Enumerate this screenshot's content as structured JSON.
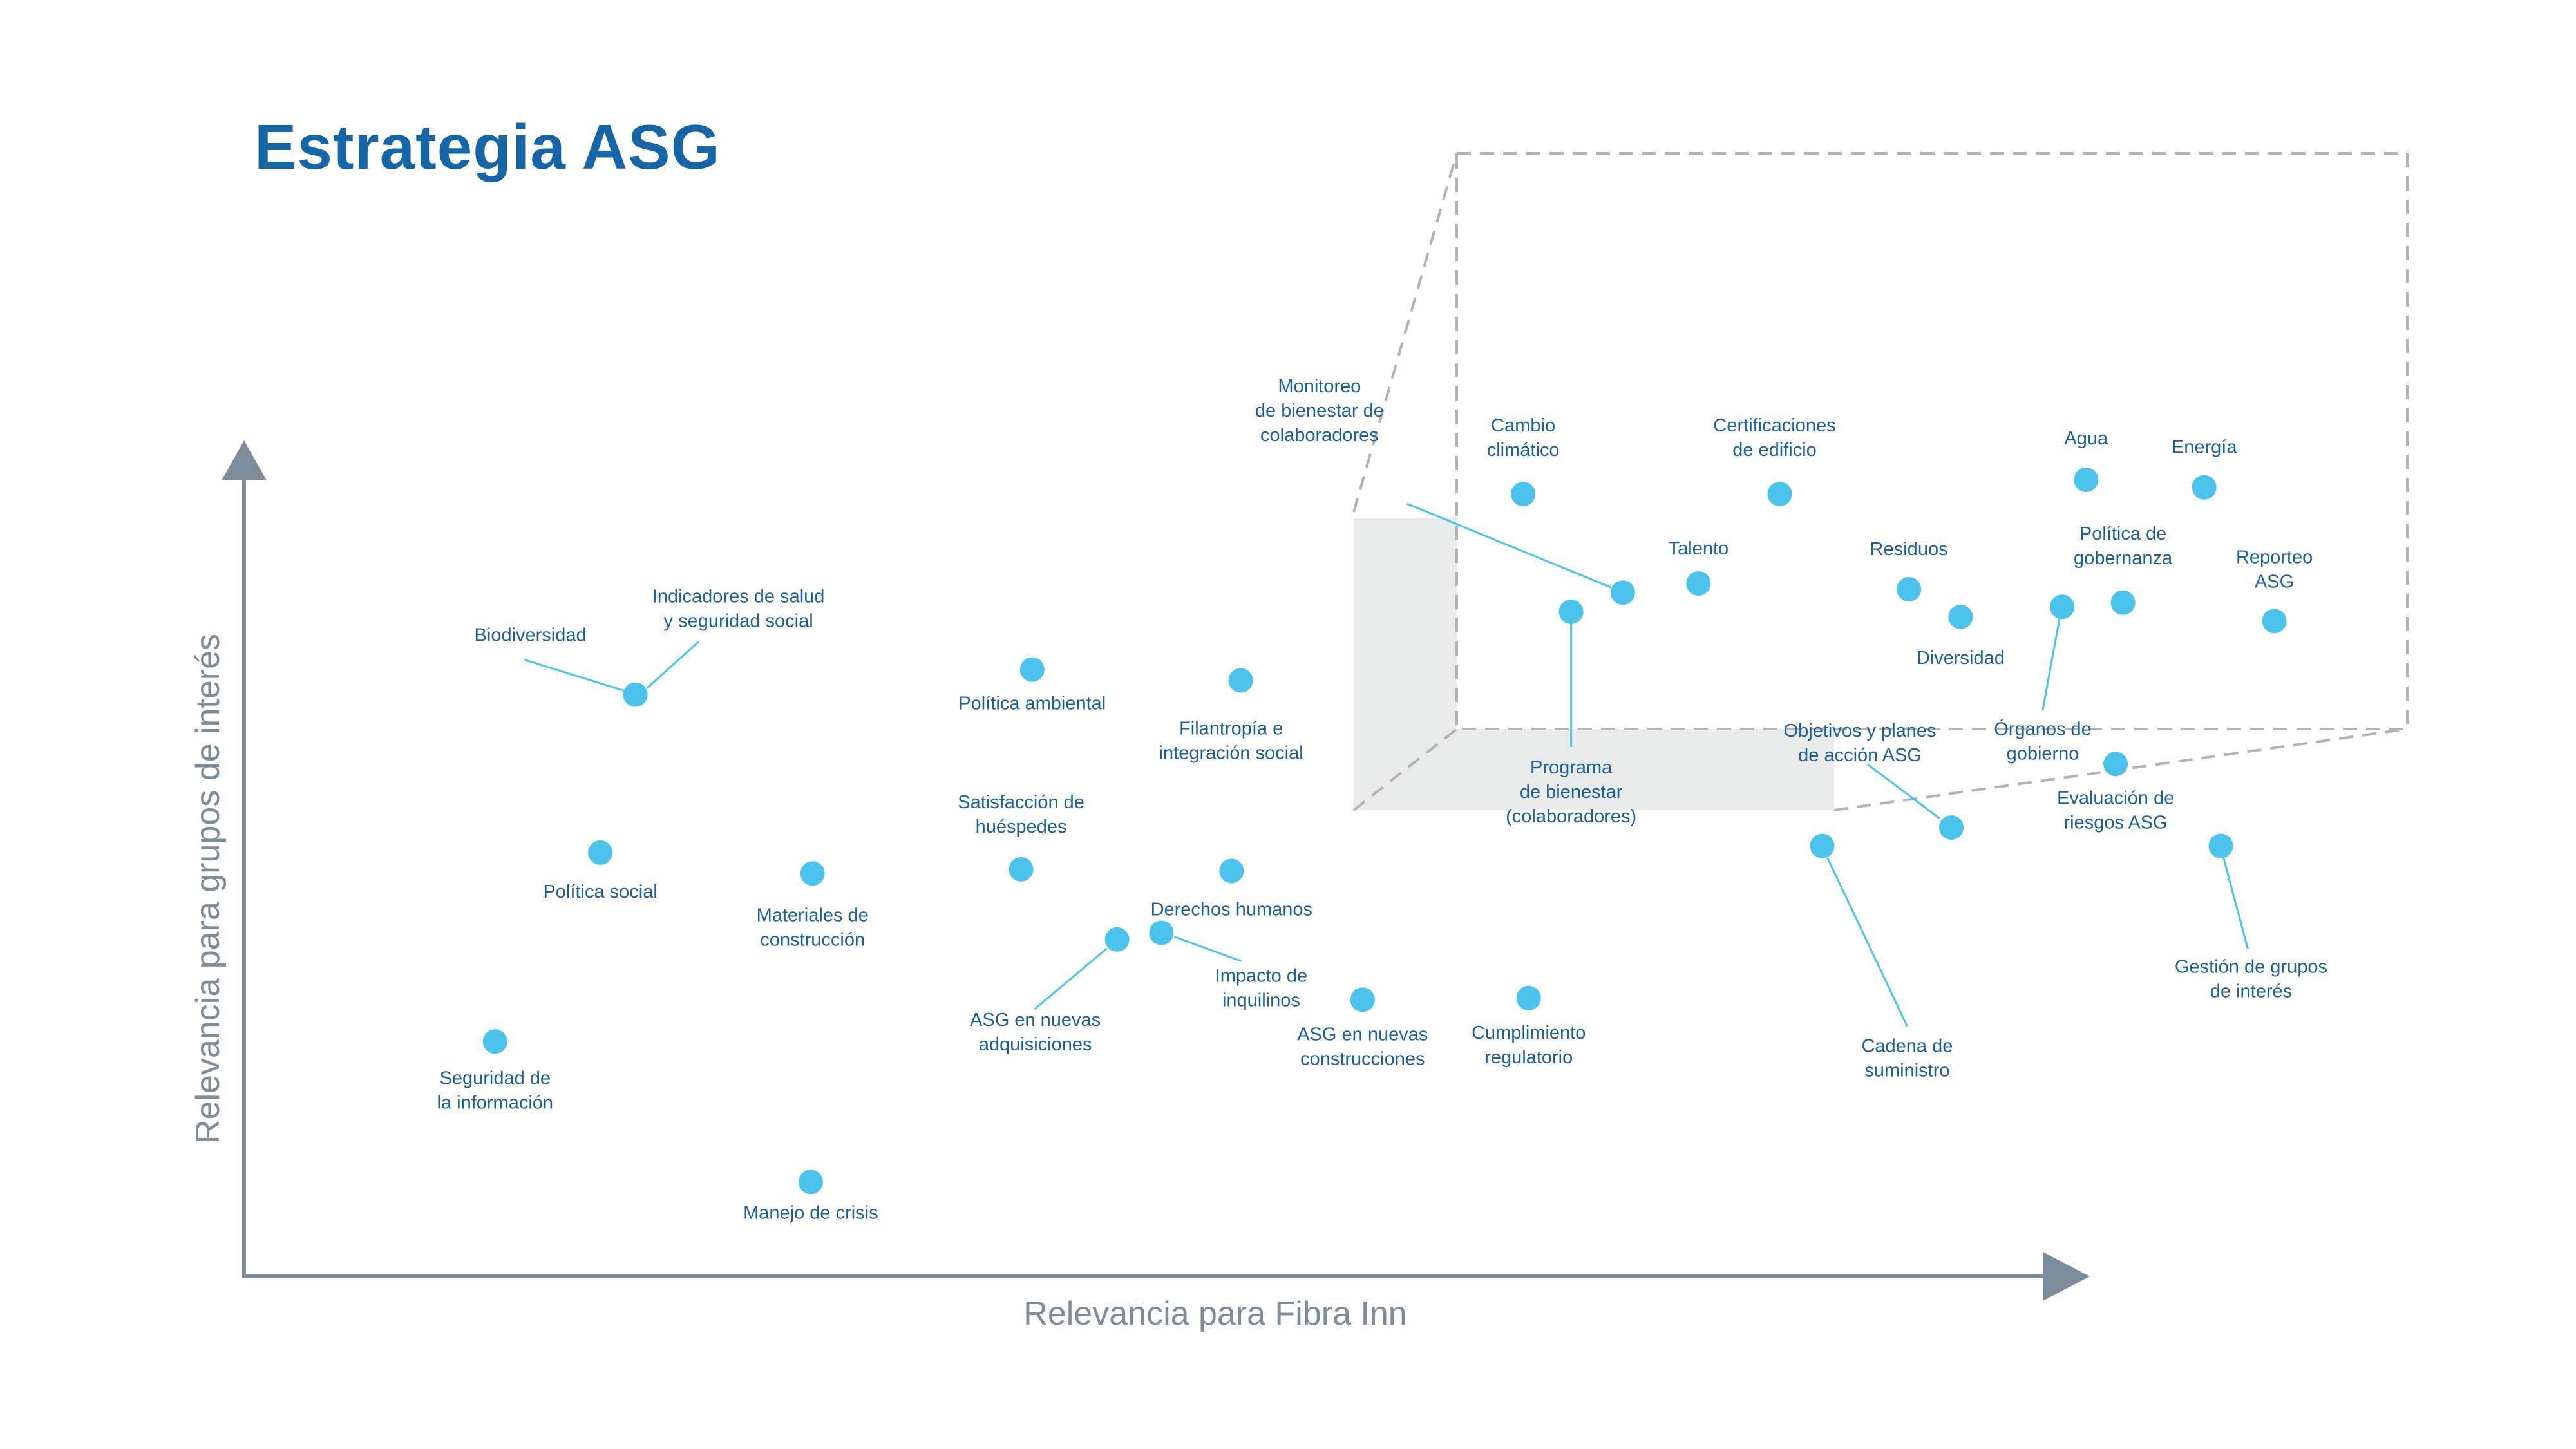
{
  "title": "Estrategia ASG",
  "chart_data": {
    "type": "scatter",
    "title": "Estrategia ASG",
    "xlabel": "Relevancia para Fibra Inn",
    "ylabel": "Relevancia para grupos de interés",
    "grid": false,
    "colors": {
      "point": "#4cc3ec",
      "label": "#1d5f99",
      "axis": "#7d8c99",
      "title": "#1565a7",
      "leader": "#4cc3ec",
      "box": "#b3b3b3",
      "shade": "#e9eaea"
    },
    "points": [
      {
        "label": [
          "Biodiversidad",
          "Indicadores de salud",
          "y seguridad social"
        ],
        "x": 0.212,
        "y": 0.696
      },
      {
        "label": [
          "Política social"
        ],
        "x": 0.193,
        "y": 0.507
      },
      {
        "label": [
          "Seguridad de",
          "la información"
        ],
        "x": 0.136,
        "y": 0.281
      },
      {
        "label": [
          "Manejo de crisis"
        ],
        "x": 0.307,
        "y": 0.113
      },
      {
        "label": [
          "Materiales de",
          "construcción"
        ],
        "x": 0.308,
        "y": 0.482
      },
      {
        "label": [
          "Política ambiental"
        ],
        "x": 0.427,
        "y": 0.726
      },
      {
        "label": [
          "Satisfacción de",
          "huéspedes"
        ],
        "x": 0.421,
        "y": 0.487
      },
      {
        "label": [
          "ASG en nuevas",
          "adquisiciones"
        ],
        "x": 0.473,
        "y": 0.403
      },
      {
        "label": [
          "Impacto de",
          "inquilinos"
        ],
        "x": 0.497,
        "y": 0.411
      },
      {
        "label": [
          "Filantropía e",
          "integración social"
        ],
        "x": 0.54,
        "y": 0.713
      },
      {
        "label": [
          "Derechos humanos"
        ],
        "x": 0.535,
        "y": 0.485
      },
      {
        "label": [
          "ASG en nuevas",
          "construcciones"
        ],
        "x": 0.606,
        "y": 0.331
      },
      {
        "label": [
          "Cumplimiento",
          "regulatorio"
        ],
        "x": 0.696,
        "y": 0.333
      },
      {
        "label": [
          "Cambio",
          "climático"
        ],
        "x": 0.693,
        "y": 0.936
      },
      {
        "label": [
          "Certificaciones",
          "de edificio"
        ],
        "x": 0.832,
        "y": 0.936
      },
      {
        "label": [
          "Agua"
        ],
        "x": 0.998,
        "y": 0.953
      },
      {
        "label": [
          "Energía"
        ],
        "x": 1.062,
        "y": 0.944
      },
      {
        "label": [
          "Monitoreo",
          "de bienestar de",
          "colaboradores"
        ],
        "x": 0.747,
        "y": 0.818
      },
      {
        "label": [
          "Talento"
        ],
        "x": 0.788,
        "y": 0.829
      },
      {
        "label": [
          "Programa",
          "de bienestar",
          "(colaboradores)"
        ],
        "x": 0.719,
        "y": 0.795
      },
      {
        "label": [
          "Residuos"
        ],
        "x": 0.902,
        "y": 0.822
      },
      {
        "label": [
          "Diversidad"
        ],
        "x": 0.93,
        "y": 0.789
      },
      {
        "label": [
          "Órganos de",
          "gobierno"
        ],
        "x": 0.985,
        "y": 0.801
      },
      {
        "label": [
          "Política de",
          "gobernanza"
        ],
        "x": 1.018,
        "y": 0.806
      },
      {
        "label": [
          "Reporteo",
          "ASG"
        ],
        "x": 1.1,
        "y": 0.784
      },
      {
        "label": [
          "Evaluación de",
          "riesgos ASG"
        ],
        "x": 1.014,
        "y": 0.613
      },
      {
        "label": [
          "Objetivos y planes",
          "de acción ASG"
        ],
        "x": 0.925,
        "y": 0.537
      },
      {
        "label": [
          "Cadena de",
          "suministro"
        ],
        "x": 0.855,
        "y": 0.515
      },
      {
        "label": [
          "Gestión de grupos",
          "de interés"
        ],
        "x": 1.071,
        "y": 0.515
      }
    ]
  }
}
